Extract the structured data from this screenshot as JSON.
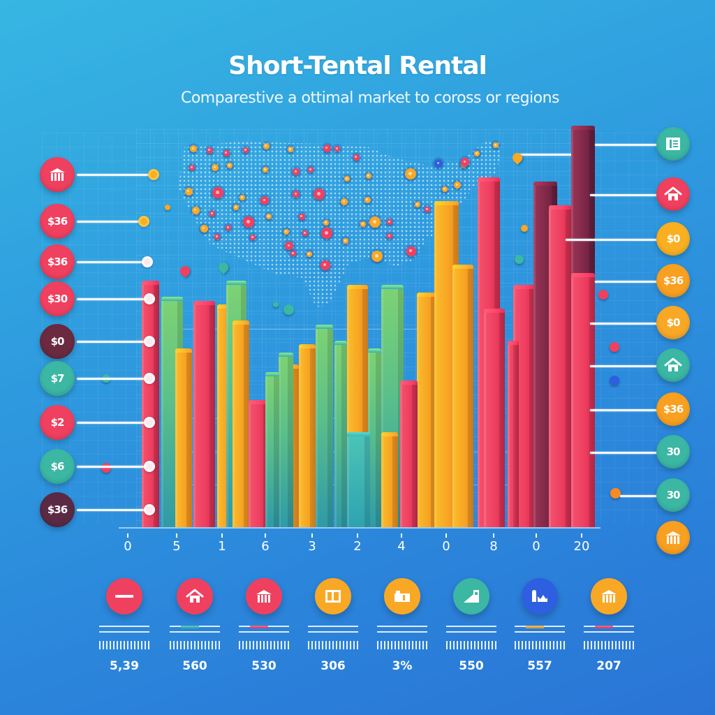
{
  "header": {
    "title": "Short-Tental Rental",
    "subtitle": "Comparestive a ottimal market to coross or regions"
  },
  "colors": {
    "background_top": "#37b6e2",
    "background_bottom": "#2a74d6",
    "red": "#f0405f",
    "orange": "#f9a825",
    "green": "#6cc56a",
    "teal": "#3bb7a3",
    "maroon": "#8c2b4a",
    "blue": "#2e5fe0"
  },
  "left_markers": [
    {
      "label": "",
      "icon": "building-icon",
      "color": "#f0405f"
    },
    {
      "label": "$36",
      "color": "#f0405f"
    },
    {
      "label": "$36",
      "color": "#f0405f"
    },
    {
      "label": "$30",
      "color": "#f0405f"
    },
    {
      "label": "$0",
      "color": "#6b2a3f"
    },
    {
      "label": "$7",
      "color": "#3bb7a3"
    },
    {
      "label": "$2",
      "color": "#f0405f"
    },
    {
      "label": "$6",
      "color": "#3bb7a3"
    },
    {
      "label": "$36",
      "color": "#5a2a45"
    }
  ],
  "right_markers": [
    {
      "label": "",
      "icon": "document-icon",
      "color": "#3bb7a3"
    },
    {
      "label": "",
      "icon": "house-icon",
      "color": "#f0405f"
    },
    {
      "label": "$0",
      "color": "#f9b020"
    },
    {
      "label": "$36",
      "color": "#f9a020"
    },
    {
      "label": "$0",
      "color": "#f9a825"
    },
    {
      "label": "",
      "icon": "house-icon",
      "color": "#3bb7a3"
    },
    {
      "label": "$36",
      "color": "#f9a020"
    },
    {
      "label": "30",
      "color": "#3bb7a3"
    },
    {
      "label": "30",
      "color": "#3bb7a3"
    },
    {
      "label": "",
      "icon": "building-icon",
      "color": "#f9a020"
    }
  ],
  "x_axis_ticks": [
    "0",
    "5",
    "1",
    "6",
    "3",
    "2",
    "4",
    "0",
    "8",
    "0",
    "20"
  ],
  "categories": [
    {
      "icon": "minus-icon",
      "color": "#f0405f",
      "value": "5,39"
    },
    {
      "icon": "house-icon",
      "color": "#f0405f",
      "value": "560"
    },
    {
      "icon": "building-icon",
      "color": "#f0405f",
      "value": "530"
    },
    {
      "icon": "window-icon",
      "color": "#f9a825",
      "value": "306"
    },
    {
      "icon": "box-icon",
      "color": "#f9a825",
      "value": "3%"
    },
    {
      "icon": "ramp-icon",
      "color": "#3bb7a3",
      "value": "550"
    },
    {
      "icon": "chart-icon",
      "color": "#2e5fe0",
      "value": "557"
    },
    {
      "icon": "building-icon",
      "color": "#f9a825",
      "value": "207"
    }
  ],
  "chart_data": {
    "type": "bar",
    "title": "Short-Tental Rental",
    "subtitle": "Comparestive a ottimal market to coross or regions",
    "xlabel": "",
    "ylabel": "",
    "x_tick_labels": [
      "0",
      "5",
      "1",
      "6",
      "3",
      "2",
      "4",
      "0",
      "8",
      "0",
      "20"
    ],
    "grid": true,
    "legend_position": "bottom",
    "ylim": [
      0,
      100
    ],
    "series_note": "Unlabeled 3D bars; heights estimated as % of plot height (baseline y=755, top y=185)",
    "bars": [
      {
        "x": 215,
        "width": 25,
        "color": "red",
        "value": 61
      },
      {
        "x": 246,
        "width": 31,
        "color": "green",
        "value": 57
      },
      {
        "x": 263,
        "width": 24,
        "color": "orange",
        "value": 44
      },
      {
        "x": 292,
        "width": 31,
        "color": "red",
        "value": 56
      },
      {
        "x": 322,
        "width": 22,
        "color": "orange",
        "value": 55
      },
      {
        "x": 338,
        "width": 29,
        "color": "green",
        "value": 61
      },
      {
        "x": 345,
        "width": 24,
        "color": "orange",
        "value": 51
      },
      {
        "x": 370,
        "width": 29,
        "color": "red",
        "value": 31
      },
      {
        "x": 390,
        "width": 20,
        "color": "green",
        "value": 38
      },
      {
        "x": 409,
        "width": 21,
        "color": "green",
        "value": 43
      },
      {
        "x": 415,
        "width": 26,
        "color": "orange",
        "value": 40
      },
      {
        "x": 440,
        "width": 24,
        "color": "orange",
        "value": 45
      },
      {
        "x": 464,
        "width": 25,
        "color": "green",
        "value": 50
      },
      {
        "x": 488,
        "width": 18,
        "color": "green",
        "value": 46
      },
      {
        "x": 512,
        "width": 30,
        "color": "orange",
        "value": 60
      },
      {
        "x": 513,
        "width": 33,
        "color": "teal",
        "value": 23
      },
      {
        "x": 536,
        "width": 19,
        "color": "green",
        "value": 44
      },
      {
        "x": 562,
        "width": 32,
        "color": "green",
        "value": 60
      },
      {
        "x": 558,
        "width": 24,
        "color": "orange",
        "value": 23
      },
      {
        "x": 585,
        "width": 25,
        "color": "red",
        "value": 36
      },
      {
        "x": 611,
        "width": 28,
        "color": "orange",
        "value": 58
      },
      {
        "x": 639,
        "width": 35,
        "color": "orange",
        "value": 81
      },
      {
        "x": 663,
        "width": 30,
        "color": "orange",
        "value": 65
      },
      {
        "x": 700,
        "width": 32,
        "color": "red",
        "value": 87
      },
      {
        "x": 708,
        "width": 30,
        "color": "red",
        "value": 54
      },
      {
        "x": 735,
        "width": 16,
        "color": "red",
        "value": 46
      },
      {
        "x": 750,
        "width": 31,
        "color": "red",
        "value": 60
      },
      {
        "x": 781,
        "width": 34,
        "color": "maroon",
        "value": 86
      },
      {
        "x": 802,
        "width": 32,
        "color": "red",
        "value": 80
      },
      {
        "x": 835,
        "width": 34,
        "color": "maroon",
        "value": 100
      },
      {
        "x": 835,
        "width": 34,
        "color": "red",
        "value": 63
      }
    ],
    "legend": [
      {
        "label": "5,39",
        "color": "#f0405f"
      },
      {
        "label": "560",
        "color": "#f0405f"
      },
      {
        "label": "530",
        "color": "#f0405f"
      },
      {
        "label": "306",
        "color": "#f9a825"
      },
      {
        "label": "3%",
        "color": "#f9a825"
      },
      {
        "label": "550",
        "color": "#3bb7a3"
      },
      {
        "label": "557",
        "color": "#2e5fe0"
      },
      {
        "label": "207",
        "color": "#f9a825"
      }
    ]
  }
}
